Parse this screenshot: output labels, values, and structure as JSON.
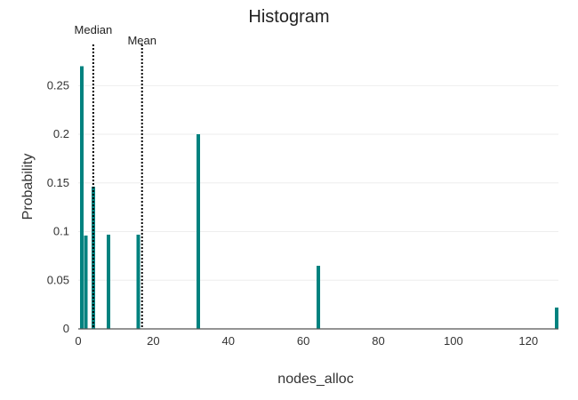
{
  "chart_data": {
    "type": "bar",
    "title": "Histogram",
    "xlabel": "nodes_alloc",
    "ylabel": "Probability",
    "xlim": [
      0,
      128
    ],
    "ylim": [
      0,
      0.285
    ],
    "x_ticks": [
      0,
      20,
      40,
      60,
      80,
      100,
      120
    ],
    "x_tick_labels": [
      "0",
      "20",
      "40",
      "60",
      "80",
      "100",
      "120"
    ],
    "y_ticks": [
      0,
      0.05,
      0.1,
      0.15,
      0.2,
      0.25
    ],
    "y_tick_labels": [
      "0",
      "0.05",
      "0.1",
      "0.15",
      "0.2",
      "0.25"
    ],
    "grid": true,
    "bar_color": "#00827f",
    "series": [
      {
        "x": [
          1,
          2,
          4,
          8,
          16,
          32,
          64,
          128
        ],
        "values": [
          0.27,
          0.096,
          0.146,
          0.097,
          0.097,
          0.2,
          0.065,
          0.022
        ]
      }
    ],
    "annotations": [
      {
        "label": "Median",
        "x": 4
      },
      {
        "label": "Mean",
        "x": 17
      }
    ]
  }
}
